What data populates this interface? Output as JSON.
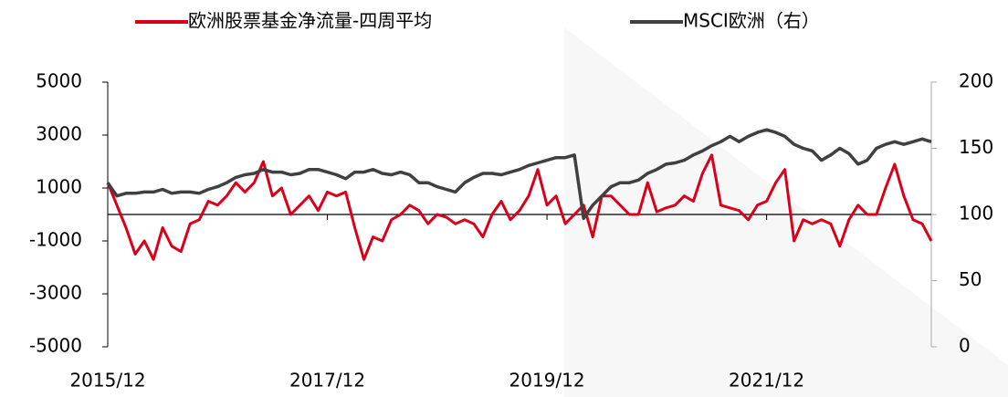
{
  "chart_data": {
    "type": "line",
    "categories": [
      "2015/12",
      null,
      null,
      null,
      null,
      null,
      null,
      null,
      null,
      null,
      null,
      null,
      null,
      null,
      null,
      null,
      null,
      null,
      null,
      null,
      null,
      null,
      null,
      null,
      "2017/12",
      null,
      null,
      null,
      null,
      null,
      null,
      null,
      null,
      null,
      null,
      null,
      null,
      null,
      null,
      null,
      null,
      null,
      null,
      null,
      null,
      null,
      null,
      null,
      "2019/12",
      null,
      null,
      null,
      null,
      null,
      null,
      null,
      null,
      null,
      null,
      null,
      null,
      null,
      null,
      null,
      null,
      null,
      null,
      null,
      null,
      null,
      null,
      null,
      "2021/12",
      null,
      null,
      null,
      null,
      null,
      null,
      null,
      null,
      null,
      null,
      null,
      null,
      null,
      null,
      null,
      null,
      null,
      null
    ],
    "series": [
      {
        "name": "欧洲股票基金净流量-四周平均",
        "color": "#d9001b",
        "axis": "y",
        "values": [
          1200,
          350,
          -500,
          -1500,
          -1000,
          -1700,
          -500,
          -1200,
          -1400,
          -350,
          -200,
          500,
          350,
          700,
          1200,
          850,
          1200,
          2000,
          700,
          1000,
          0,
          350,
          700,
          150,
          850,
          700,
          850,
          -500,
          -1700,
          -850,
          -1000,
          -200,
          0,
          350,
          150,
          -350,
          0,
          -100,
          -350,
          -200,
          -350,
          -850,
          0,
          500,
          -200,
          150,
          700,
          1700,
          350,
          700,
          -350,
          0,
          350,
          -850,
          700,
          700,
          350,
          0,
          0,
          1200,
          100,
          250,
          350,
          700,
          500,
          1550,
          2250,
          350,
          250,
          150,
          -200,
          350,
          500,
          1200,
          1700,
          -1000,
          -200,
          -350,
          -200,
          -350,
          -1200,
          -200,
          350,
          0,
          0,
          1000,
          1900,
          700,
          -200,
          -350,
          -1000
        ]
      },
      {
        "name": "MSCI欧洲（右）",
        "color": "#404040",
        "axis": "y2",
        "values": [
          124,
          114,
          116,
          116,
          117,
          117,
          119,
          116,
          117,
          117,
          116,
          119,
          121,
          124,
          128,
          130,
          131,
          134,
          132,
          132,
          130,
          131,
          134,
          134,
          132,
          130,
          127,
          132,
          132,
          134,
          131,
          130,
          132,
          130,
          124,
          124,
          121,
          119,
          117,
          124,
          128,
          131,
          131,
          130,
          132,
          134,
          137,
          139,
          141,
          143,
          143,
          145,
          97,
          107,
          114,
          121,
          124,
          124,
          126,
          131,
          134,
          138,
          139,
          141,
          145,
          148,
          152,
          155,
          159,
          155,
          159,
          162,
          164,
          162,
          159,
          153,
          150,
          148,
          141,
          145,
          150,
          146,
          138,
          141,
          150,
          153,
          155,
          153,
          155,
          157,
          155
        ]
      }
    ],
    "ylim": [
      -5000,
      5000
    ],
    "yticks": [
      -5000,
      -3000,
      -1000,
      1000,
      3000,
      5000
    ],
    "y2lim": [
      0,
      200
    ],
    "y2ticks": [
      0,
      50,
      100,
      150,
      200
    ],
    "legend": "top"
  }
}
